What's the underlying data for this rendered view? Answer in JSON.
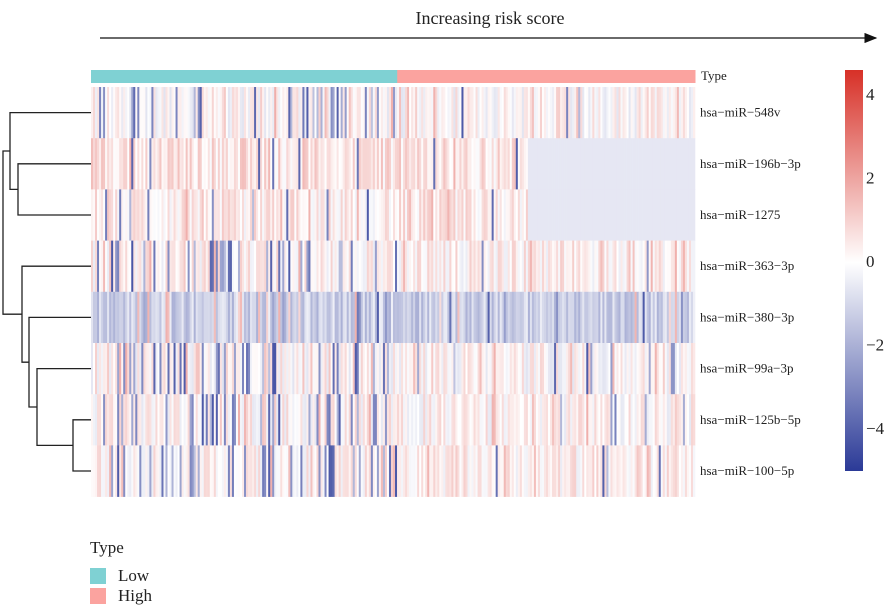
{
  "chart_data": {
    "type": "heatmap",
    "title": "Increasing risk score",
    "annotation_label": "Type",
    "groups": [
      {
        "name": "Low",
        "color": "#7fd1d3",
        "fraction": 0.507
      },
      {
        "name": "High",
        "color": "#fba39f",
        "fraction": 0.493
      }
    ],
    "rows": [
      "hsa−miR−548v",
      "hsa−miR−196b−3p",
      "hsa−miR−1275",
      "hsa−miR−363−3p",
      "hsa−miR−380−3p",
      "hsa−miR−99a−3p",
      "hsa−miR−125b−5p",
      "hsa−miR−100−5p"
    ],
    "row_baselines": [
      0.1,
      0.6,
      0.4,
      0.3,
      -1.2,
      0.1,
      0.2,
      0.3
    ],
    "n_samples": 300,
    "color_scale": {
      "min": -5,
      "max": 4.6,
      "colors": [
        "#2b3a97",
        "#ffffff",
        "#d73027"
      ],
      "ticks": [
        4,
        2,
        0,
        -2,
        -4
      ],
      "tick_labels": [
        "4",
        "2",
        "0",
        "−2",
        "−4"
      ]
    },
    "legend": {
      "title": "Type",
      "items": [
        {
          "label": "Low",
          "color": "#7fd1d3"
        },
        {
          "label": "High",
          "color": "#fba39f"
        }
      ]
    }
  }
}
